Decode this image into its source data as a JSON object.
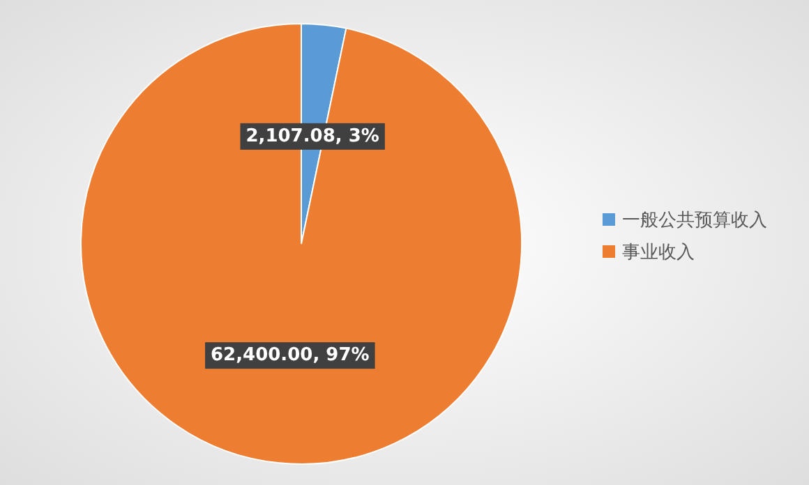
{
  "chart_data": {
    "type": "pie",
    "categories": [
      "一般公共预算收入",
      "事业收入"
    ],
    "values": [
      2107.08,
      62400.0
    ],
    "colors": [
      "#5b9bd5",
      "#ed7d31"
    ],
    "value_labels": [
      "2,107.08, 3%",
      "62,400.00, 97%"
    ],
    "legend": "right"
  }
}
